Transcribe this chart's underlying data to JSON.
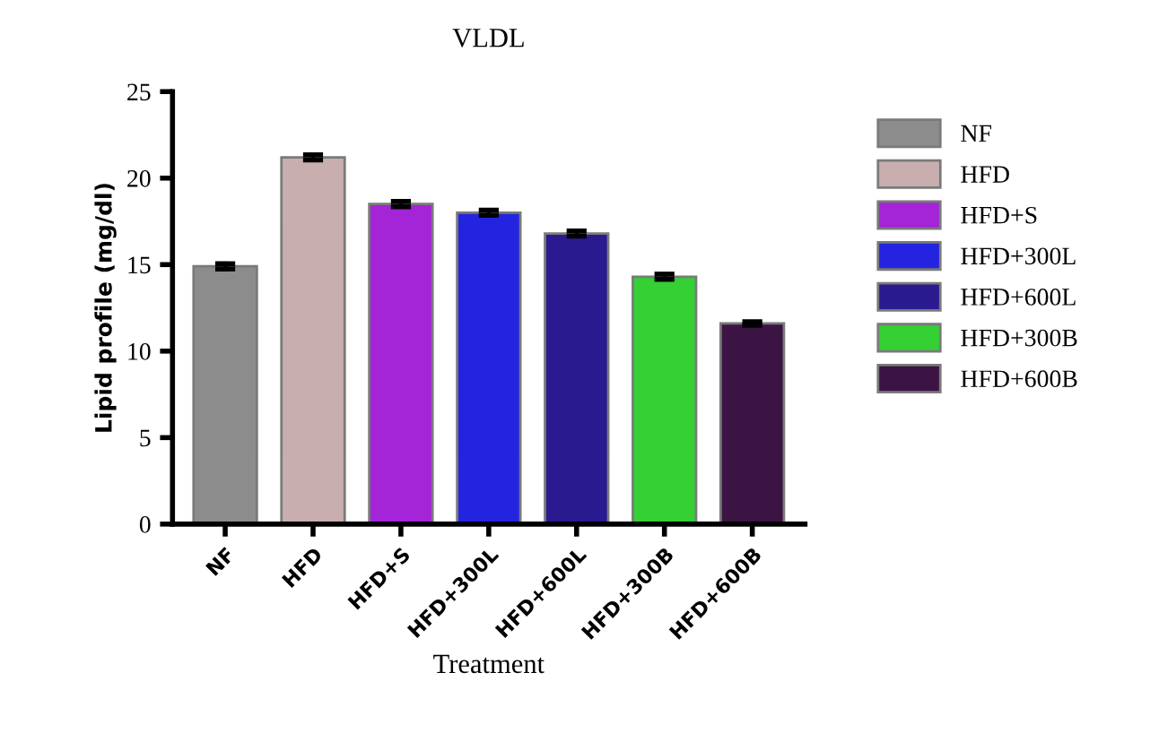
{
  "chart_data": {
    "type": "bar",
    "title": "VLDL",
    "xlabel": "Treatment",
    "ylabel": "Lipid profile (mg/dl)",
    "categories": [
      "NF",
      "HFD",
      "HFD+S",
      "HFD+300L",
      "HFD+600L",
      "HFD+300B",
      "HFD+600B"
    ],
    "series": [
      {
        "name": "NF",
        "color": "#8c8c8c",
        "values": [
          14.9,
          null,
          null,
          null,
          null,
          null,
          null
        ],
        "errors": [
          0.15,
          null,
          null,
          null,
          null,
          null,
          null
        ]
      },
      {
        "name": "HFD",
        "color": "#c9aeb0",
        "values": [
          null,
          21.2,
          null,
          null,
          null,
          null,
          null
        ],
        "errors": [
          null,
          0.15,
          null,
          null,
          null,
          null,
          null
        ]
      },
      {
        "name": "HFD+S",
        "color": "#a424d8",
        "values": [
          null,
          null,
          18.5,
          null,
          null,
          null,
          null
        ],
        "errors": [
          null,
          null,
          0.15,
          null,
          null,
          null,
          null
        ]
      },
      {
        "name": "HFD+300L",
        "color": "#2424e0",
        "values": [
          null,
          null,
          null,
          18.0,
          null,
          null,
          null
        ],
        "errors": [
          null,
          null,
          null,
          0.15,
          null,
          null,
          null
        ]
      },
      {
        "name": "HFD+600L",
        "color": "#2a1a90",
        "values": [
          null,
          null,
          null,
          null,
          16.8,
          null,
          null
        ],
        "errors": [
          null,
          null,
          null,
          null,
          0.15,
          null,
          null
        ]
      },
      {
        "name": "HFD+300B",
        "color": "#34d034",
        "values": [
          null,
          null,
          null,
          null,
          null,
          14.3,
          null
        ],
        "errors": [
          null,
          null,
          null,
          null,
          null,
          0.15,
          null
        ]
      },
      {
        "name": "HFD+600B",
        "color": "#3c1444",
        "values": [
          null,
          null,
          null,
          null,
          null,
          null,
          11.6
        ],
        "errors": [
          null,
          null,
          null,
          null,
          null,
          null,
          0.1
        ]
      }
    ],
    "ylim": [
      0,
      25
    ],
    "yticks": [
      0,
      5,
      10,
      15,
      20,
      25
    ],
    "grid": false,
    "legend": "right"
  }
}
